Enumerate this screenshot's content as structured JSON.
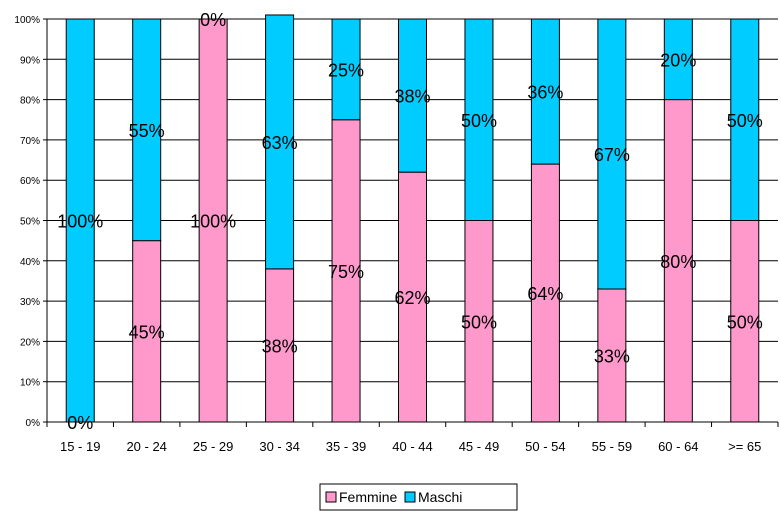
{
  "chart_data": {
    "type": "bar",
    "stacked": true,
    "categories": [
      "15 - 19",
      "20 - 24",
      "25 - 29",
      "30 - 34",
      "35 - 39",
      "40 - 44",
      "45 - 49",
      "50 - 54",
      "55 - 59",
      "60 - 64",
      ">= 65"
    ],
    "series": [
      {
        "name": "Femmine",
        "color": "#ff99cc",
        "values": [
          0,
          45,
          100,
          38,
          75,
          62,
          50,
          64,
          33,
          80,
          50
        ],
        "labels": [
          "0%",
          "45%",
          "100%",
          "38%",
          "75%",
          "62%",
          "50%",
          "64%",
          "33%",
          "80%",
          "50%"
        ]
      },
      {
        "name": "Maschi",
        "color": "#00ccff",
        "values": [
          100,
          55,
          0,
          63,
          25,
          38,
          50,
          36,
          67,
          20,
          50
        ],
        "labels": [
          "100%",
          "55%",
          "0%",
          "63%",
          "25%",
          "38%",
          "50%",
          "36%",
          "67%",
          "20%",
          "50%"
        ]
      }
    ],
    "yticks": [
      "0%",
      "10%",
      "20%",
      "30%",
      "40%",
      "50%",
      "60%",
      "70%",
      "80%",
      "90%",
      "100%"
    ],
    "ylim": [
      0,
      100
    ],
    "grid": true,
    "legend": "bottom",
    "title": "",
    "xlabel": "",
    "ylabel": ""
  }
}
